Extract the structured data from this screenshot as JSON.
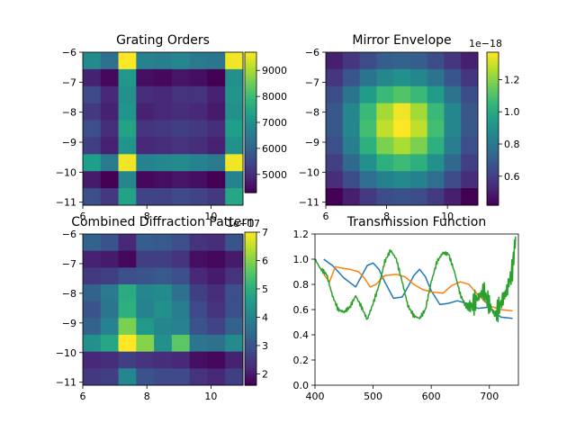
{
  "chart_data": [
    {
      "type": "heatmap",
      "title": "Grating Orders",
      "x_ticks": [
        6,
        8,
        10
      ],
      "y_ticks": [
        -6,
        -7,
        -8,
        -9,
        -10,
        -11
      ],
      "xlim": [
        6,
        11
      ],
      "ylim": [
        -11.1,
        -6
      ],
      "colorbar": {
        "min": 4300,
        "max": 9700,
        "ticks": [
          5000,
          6000,
          7000,
          8000,
          9000
        ],
        "offset_text": ""
      },
      "rows_top_to_bottom": [
        [
          6900,
          6300,
          9700,
          6700,
          6600,
          6800,
          6500,
          6400,
          9600
        ],
        [
          4800,
          4400,
          7200,
          4500,
          4400,
          4600,
          4500,
          4300,
          7000
        ],
        [
          5500,
          4900,
          7000,
          5000,
          4900,
          5100,
          5100,
          4800,
          7100
        ],
        [
          5200,
          4800,
          7100,
          4800,
          4900,
          5000,
          4900,
          4700,
          7000
        ],
        [
          5600,
          5000,
          7400,
          5100,
          5200,
          5300,
          5200,
          5000,
          7300
        ],
        [
          5300,
          4800,
          7100,
          4900,
          5000,
          5100,
          5000,
          4800,
          7000
        ],
        [
          7300,
          6500,
          9600,
          6700,
          6800,
          6900,
          6700,
          6500,
          9600
        ],
        [
          4700,
          4300,
          6800,
          4400,
          4500,
          4600,
          4500,
          4300,
          6700
        ],
        [
          5600,
          5200,
          7400,
          5400,
          5400,
          5500,
          5400,
          5200,
          7500
        ]
      ]
    },
    {
      "type": "heatmap",
      "title": "Mirror Envelope",
      "x_ticks": [
        6,
        8,
        10
      ],
      "y_ticks": [
        -6,
        -7,
        -8,
        -9,
        -10,
        -11
      ],
      "xlim": [
        6,
        11
      ],
      "ylim": [
        -11.1,
        -6
      ],
      "colorbar": {
        "min": 0.42,
        "max": 1.37,
        "ticks": [
          0.6,
          0.8,
          1.0,
          1.2
        ],
        "offset_text": "1e−18"
      },
      "rows_top_to_bottom": [
        [
          0.5,
          0.57,
          0.64,
          0.7,
          0.72,
          0.7,
          0.64,
          0.57,
          0.5
        ],
        [
          0.57,
          0.67,
          0.78,
          0.86,
          0.9,
          0.86,
          0.78,
          0.67,
          0.57
        ],
        [
          0.64,
          0.78,
          0.94,
          1.06,
          1.11,
          1.06,
          0.94,
          0.78,
          0.64
        ],
        [
          0.68,
          0.86,
          1.06,
          1.24,
          1.35,
          1.24,
          1.06,
          0.86,
          0.68
        ],
        [
          0.68,
          0.86,
          1.08,
          1.28,
          1.37,
          1.28,
          1.08,
          0.86,
          0.68
        ],
        [
          0.65,
          0.82,
          1.02,
          1.18,
          1.25,
          1.18,
          1.02,
          0.82,
          0.65
        ],
        [
          0.6,
          0.74,
          0.9,
          1.02,
          1.07,
          1.02,
          0.9,
          0.74,
          0.6
        ],
        [
          0.54,
          0.64,
          0.76,
          0.84,
          0.87,
          0.84,
          0.76,
          0.64,
          0.54
        ],
        [
          0.42,
          0.5,
          0.58,
          0.64,
          0.66,
          0.64,
          0.58,
          0.5,
          0.42
        ]
      ]
    },
    {
      "type": "heatmap",
      "title": "Combined Diffraction Pattern",
      "x_ticks": [
        6,
        8,
        10
      ],
      "y_ticks": [
        -6,
        -7,
        -8,
        -9,
        -10,
        -11
      ],
      "xlim": [
        6,
        11
      ],
      "ylim": [
        -11.1,
        -6
      ],
      "colorbar": {
        "min": 1.6,
        "max": 7.0,
        "ticks": [
          2,
          3,
          4,
          5,
          6,
          7
        ],
        "offset_text": "1e−17"
      },
      "rows_top_to_bottom": [
        [
          3.3,
          3.0,
          2.2,
          3.2,
          3.1,
          2.9,
          2.4,
          2.3,
          3.0
        ],
        [
          2.1,
          2.0,
          1.7,
          2.6,
          2.6,
          2.4,
          1.8,
          1.7,
          2.0
        ],
        [
          2.5,
          2.6,
          2.9,
          3.0,
          3.1,
          2.9,
          2.2,
          2.0,
          2.4
        ],
        [
          3.3,
          3.8,
          4.9,
          4.1,
          4.2,
          3.6,
          2.6,
          2.3,
          2.9
        ],
        [
          3.0,
          3.7,
          5.0,
          4.0,
          4.3,
          3.9,
          2.8,
          2.4,
          2.9
        ],
        [
          3.3,
          4.0,
          5.9,
          4.5,
          4.1,
          4.0,
          3.0,
          2.7,
          3.3
        ],
        [
          4.3,
          4.8,
          7.0,
          6.0,
          4.3,
          5.6,
          3.7,
          3.6,
          4.2
        ],
        [
          2.2,
          2.3,
          2.6,
          2.4,
          2.3,
          2.2,
          1.8,
          1.7,
          2.1
        ],
        [
          2.5,
          2.6,
          4.1,
          3.0,
          2.8,
          2.8,
          2.4,
          2.2,
          2.6
        ]
      ]
    },
    {
      "type": "line",
      "title": "Transmission Function",
      "xlim": [
        400,
        750
      ],
      "ylim": [
        0,
        1.2
      ],
      "x_ticks": [
        400,
        500,
        600,
        700
      ],
      "y_ticks": [
        0.0,
        0.2,
        0.4,
        0.6,
        0.8,
        1.0,
        1.2
      ],
      "series": [
        {
          "color": "#1f77b4",
          "x": [
            415,
            430,
            450,
            470,
            490,
            500,
            510,
            520,
            535,
            550,
            560,
            570,
            580,
            590,
            600,
            615,
            630,
            645,
            660,
            680,
            700,
            720,
            740
          ],
          "y": [
            1.0,
            0.95,
            0.85,
            0.78,
            0.95,
            0.97,
            0.92,
            0.82,
            0.69,
            0.7,
            0.78,
            0.87,
            0.92,
            0.86,
            0.75,
            0.64,
            0.65,
            0.67,
            0.65,
            0.61,
            0.62,
            0.54,
            0.53
          ]
        },
        {
          "color": "#ff7f0e",
          "x": [
            415,
            425,
            435,
            445,
            460,
            475,
            485,
            495,
            505,
            520,
            540,
            555,
            570,
            585,
            600,
            620,
            635,
            650,
            665,
            680,
            700,
            720,
            740
          ],
          "y": [
            0.88,
            0.82,
            0.94,
            0.93,
            0.92,
            0.9,
            0.85,
            0.78,
            0.8,
            0.87,
            0.88,
            0.86,
            0.8,
            0.76,
            0.74,
            0.73,
            0.79,
            0.82,
            0.8,
            0.72,
            0.63,
            0.6,
            0.59
          ]
        },
        {
          "color": "#2ca02c",
          "x": [
            400,
            410,
            420,
            430,
            440,
            450,
            460,
            470,
            480,
            490,
            500,
            510,
            520,
            530,
            540,
            550,
            560,
            570,
            580,
            590,
            600,
            610,
            620,
            630,
            640,
            650,
            660,
            670,
            680,
            690,
            700,
            710,
            720,
            730,
            740,
            745
          ],
          "y": [
            1.0,
            0.92,
            0.88,
            0.71,
            0.6,
            0.58,
            0.62,
            0.71,
            0.62,
            0.52,
            0.65,
            0.79,
            0.98,
            1.07,
            1.0,
            0.82,
            0.63,
            0.55,
            0.53,
            0.6,
            0.82,
            0.98,
            1.05,
            1.04,
            0.9,
            0.72,
            0.62,
            0.63,
            0.69,
            0.75,
            0.64,
            0.55,
            0.65,
            0.75,
            0.92,
            1.18
          ]
        }
      ]
    }
  ]
}
